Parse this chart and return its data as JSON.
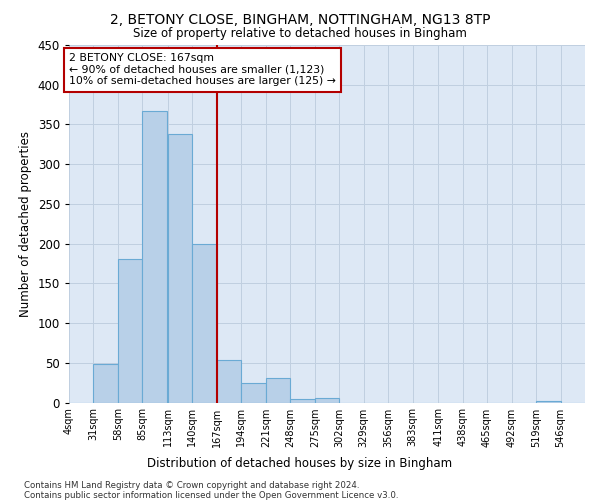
{
  "title1": "2, BETONY CLOSE, BINGHAM, NOTTINGHAM, NG13 8TP",
  "title2": "Size of property relative to detached houses in Bingham",
  "xlabel": "Distribution of detached houses by size in Bingham",
  "ylabel": "Number of detached properties",
  "footer1": "Contains HM Land Registry data © Crown copyright and database right 2024.",
  "footer2": "Contains public sector information licensed under the Open Government Licence v3.0.",
  "annotation_line1": "2 BETONY CLOSE: 167sqm",
  "annotation_line2": "← 90% of detached houses are smaller (1,123)",
  "annotation_line3": "10% of semi-detached houses are larger (125) →",
  "property_size": 167,
  "bar_bins": [
    4,
    31,
    58,
    85,
    113,
    140,
    167,
    194,
    221,
    248,
    275,
    302,
    329,
    356,
    383,
    411,
    438,
    465,
    492,
    519,
    546
  ],
  "bar_values": [
    0,
    49,
    181,
    367,
    338,
    200,
    54,
    25,
    31,
    5,
    6,
    0,
    0,
    0,
    0,
    0,
    0,
    0,
    0,
    2,
    0
  ],
  "bar_color": "#b8d0e8",
  "bar_edge_color": "#6aaad4",
  "vline_color": "#b30000",
  "annotation_box_color": "#b30000",
  "plot_bg_color": "#dde8f5",
  "figure_bg_color": "#ffffff",
  "grid_color": "#c0cfe0",
  "ylim": [
    0,
    450
  ],
  "tick_labels": [
    "4sqm",
    "31sqm",
    "58sqm",
    "85sqm",
    "113sqm",
    "140sqm",
    "167sqm",
    "194sqm",
    "221sqm",
    "248sqm",
    "275sqm",
    "302sqm",
    "329sqm",
    "356sqm",
    "383sqm",
    "411sqm",
    "438sqm",
    "465sqm",
    "492sqm",
    "519sqm",
    "546sqm"
  ]
}
